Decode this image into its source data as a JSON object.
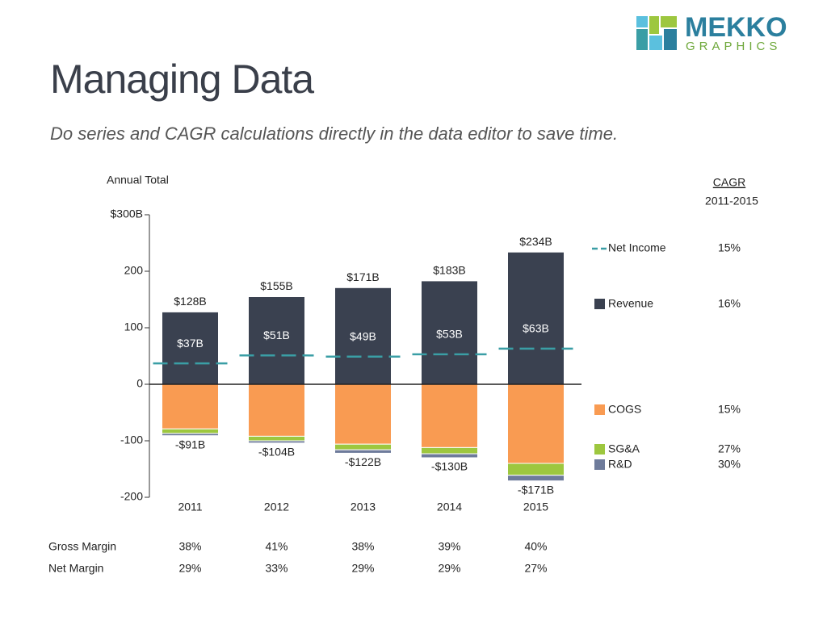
{
  "logo": [
    "MEKKO",
    "GRAPHICS"
  ],
  "header": {
    "title": "Managing Data",
    "subtitle": "Do series and CAGR calculations directly in the data editor to save time."
  },
  "chart_data": {
    "type": "stacked-bar",
    "y_axis_title": "Annual Total",
    "categories": [
      "2011",
      "2012",
      "2013",
      "2014",
      "2015"
    ],
    "ylim": [
      -200,
      300
    ],
    "yticks": [
      {
        "value": 300,
        "label": "$300B"
      },
      200,
      100,
      0,
      -100,
      -200
    ],
    "cagr_title": "CAGR",
    "cagr_period": "2011-2015",
    "series": [
      {
        "name": "Net Income",
        "kind": "dash",
        "color": "#3a9ea5",
        "values": [
          37,
          51,
          49,
          53,
          63
        ],
        "value_labels": [
          "$37B",
          "$51B",
          "$49B",
          "$53B",
          "$63B"
        ],
        "cagr": 15,
        "cagr_label": "15%"
      },
      {
        "name": "Revenue",
        "kind": "bar",
        "color": "#3a4150",
        "values": [
          128,
          155,
          171,
          183,
          234
        ],
        "value_labels": [
          "$128B",
          "$155B",
          "$171B",
          "$183B",
          "$234B"
        ],
        "cagr": 16,
        "cagr_label": "16%"
      },
      {
        "name": "COGS",
        "kind": "bar",
        "color": "#f99b52",
        "values": [
          -79,
          -92,
          -106,
          -112,
          -140
        ],
        "cagr": 15,
        "cagr_label": "15%"
      },
      {
        "name": "SG&A",
        "kind": "bar",
        "color": "#9dc73f",
        "values": [
          -8,
          -8,
          -10,
          -11,
          -21
        ],
        "cagr": 27,
        "cagr_label": "27%"
      },
      {
        "name": "R&D",
        "kind": "bar",
        "color": "#6e7b9b",
        "values": [
          -4,
          -4,
          -6,
          -7,
          -10
        ],
        "cagr": 30,
        "cagr_label": "30%"
      }
    ],
    "negative_totals": {
      "values": [
        -91,
        -104,
        -122,
        -130,
        -171
      ],
      "value_labels": [
        "-$91B",
        "-$104B",
        "-$122B",
        "-$130B",
        "-$171B"
      ]
    },
    "table": [
      {
        "label": "Gross Margin",
        "values": [
          38,
          41,
          38,
          39,
          40
        ],
        "value_labels": [
          "38%",
          "41%",
          "38%",
          "39%",
          "40%"
        ]
      },
      {
        "label": "Net Margin",
        "values": [
          29,
          33,
          29,
          29,
          27
        ],
        "value_labels": [
          "29%",
          "33%",
          "29%",
          "29%",
          "27%"
        ]
      }
    ]
  }
}
